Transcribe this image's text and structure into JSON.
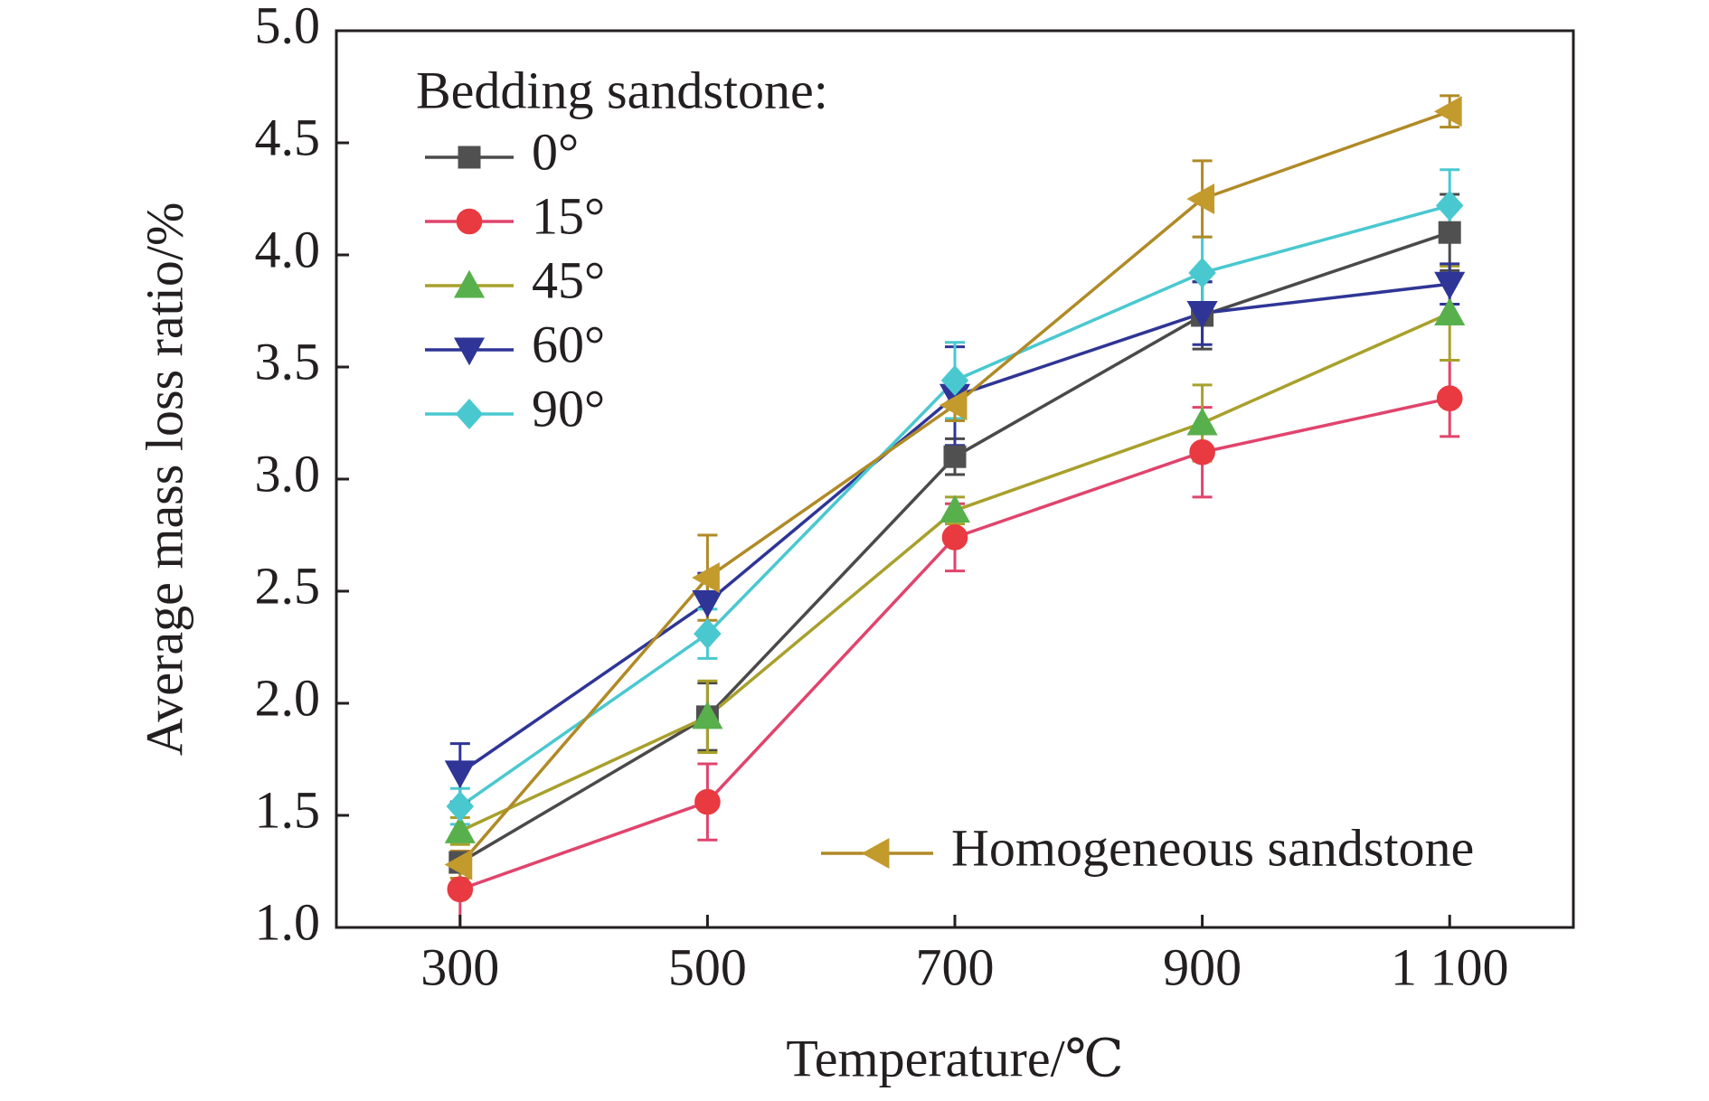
{
  "chart_data": {
    "type": "line",
    "title": "",
    "xlabel": "Temperature/℃",
    "ylabel": "Average mass loss ratio/%",
    "x": [
      300,
      500,
      700,
      900,
      1100
    ],
    "x_tick_labels": [
      "300",
      "500",
      "700",
      "900",
      "1 100"
    ],
    "xlim": [
      200,
      1200
    ],
    "ylim": [
      1.0,
      5.0
    ],
    "y_ticks": [
      "1.0",
      "1.5",
      "2.0",
      "2.5",
      "3.0",
      "3.5",
      "4.0",
      "4.5",
      "5.0"
    ],
    "grid": false,
    "legend_title": "Bedding sandstone:",
    "legend_position": "top-left",
    "legend2_position": "bottom-right",
    "series": [
      {
        "name": "0°",
        "marker": "square",
        "color": "#4a4a4a",
        "marker_color": "#505050",
        "values": [
          1.29,
          1.94,
          3.1,
          3.73,
          4.1
        ],
        "errors": [
          0.04,
          0.15,
          0.08,
          0.15,
          0.17
        ]
      },
      {
        "name": "15°",
        "marker": "circle",
        "color": "#e0446c",
        "marker_color": "#e83a40",
        "values": [
          1.17,
          1.56,
          2.74,
          3.12,
          3.36
        ],
        "errors": [
          0.17,
          0.17,
          0.15,
          0.2,
          0.17
        ]
      },
      {
        "name": "45°",
        "marker": "triangle-up",
        "color": "#a8a02c",
        "marker_color": "#58b04c",
        "values": [
          1.43,
          1.94,
          2.86,
          3.25,
          3.74
        ],
        "errors": [
          0.06,
          0.16,
          0.06,
          0.17,
          0.21
        ]
      },
      {
        "name": "60°",
        "marker": "triangle-down",
        "color": "#2f3596",
        "marker_color": "#2f3596",
        "values": [
          1.69,
          2.45,
          3.37,
          3.74,
          3.87
        ],
        "errors": [
          0.13,
          0.13,
          0.22,
          0.14,
          0.09
        ]
      },
      {
        "name": "90°",
        "marker": "diamond",
        "color": "#4ac8d0",
        "marker_color": "#4ac8d0",
        "values": [
          1.54,
          2.31,
          3.44,
          3.92,
          4.22
        ],
        "errors": [
          0.08,
          0.11,
          0.17,
          0.16,
          0.16
        ]
      },
      {
        "name": "Homogeneous sandstone",
        "marker": "triangle-left",
        "color": "#b08a26",
        "marker_color": "#c39a2c",
        "values": [
          1.28,
          2.56,
          3.33,
          4.25,
          4.64
        ],
        "errors": [
          0.06,
          0.19,
          0.07,
          0.17,
          0.07
        ]
      }
    ]
  }
}
